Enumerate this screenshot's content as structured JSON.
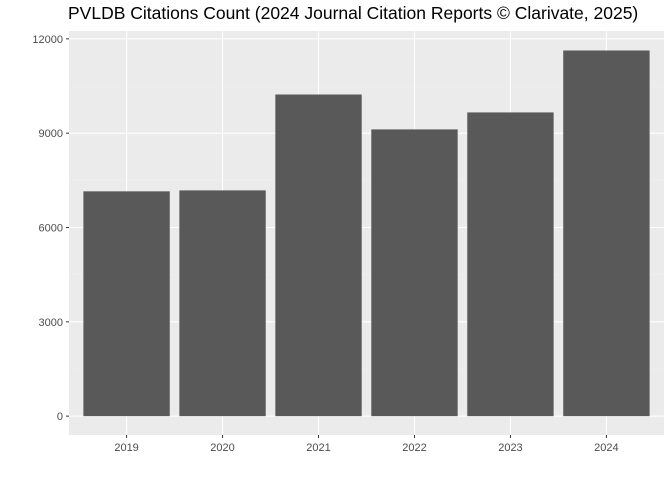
{
  "chart_data": {
    "type": "bar",
    "title": "PVLDB Citations Count (2024 Journal Citation Reports © Clarivate, 2025)",
    "xlabel": "",
    "ylabel": "",
    "categories": [
      "2019",
      "2020",
      "2021",
      "2022",
      "2023",
      "2024"
    ],
    "values": [
      7150,
      7180,
      10230,
      9120,
      9660,
      11630
    ],
    "ylim": [
      -600,
      12250
    ],
    "yticks": [
      0,
      3000,
      6000,
      9000,
      12000
    ],
    "ytick_labels": [
      "0",
      "3000",
      "6000",
      "9000",
      "12000"
    ],
    "grid": true,
    "legend": "none",
    "colors": {
      "bar": "#595959",
      "panel": "#ebebeb",
      "grid_major": "#ffffff",
      "grid_minor": "#f2f2f2",
      "tick_text": "#4d4d4d",
      "tick_mark": "#333333"
    }
  }
}
